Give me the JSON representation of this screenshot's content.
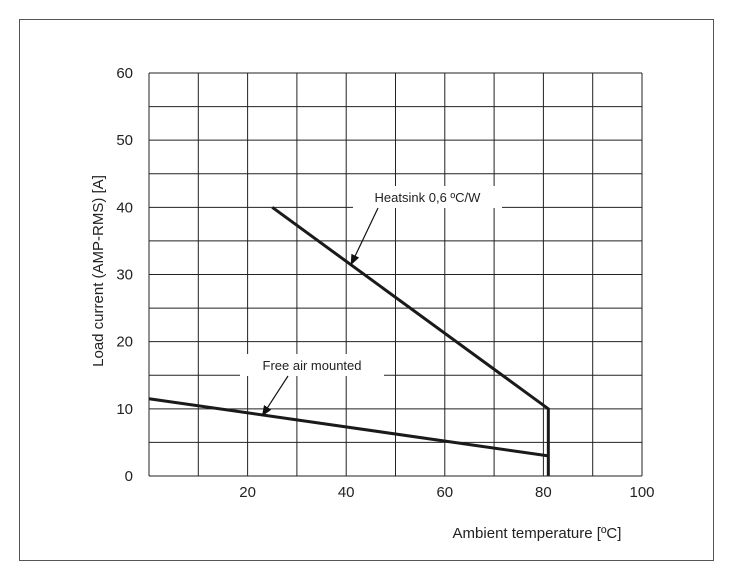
{
  "chart_data": {
    "type": "line",
    "xlabel": "Ambient temperature [ºC]",
    "ylabel": "Load current (AMP-RMS) [A]",
    "xlim": [
      0,
      100
    ],
    "ylim": [
      0,
      60
    ],
    "x_ticks": [
      20,
      40,
      60,
      80,
      100
    ],
    "y_ticks": [
      0,
      10,
      20,
      30,
      40,
      50,
      60
    ],
    "grid": true,
    "series": [
      {
        "name": "Heatsink 0,6 ºC/W",
        "points": [
          [
            25,
            40
          ],
          [
            81,
            10
          ],
          [
            81,
            0
          ]
        ]
      },
      {
        "name": "Free air mounted",
        "points": [
          [
            0,
            11.5
          ],
          [
            81,
            3
          ]
        ]
      }
    ],
    "annotations": [
      {
        "text": "Heatsink 0,6 ºC/W",
        "target": [
          41,
          31.5
        ]
      },
      {
        "text": "Free air mounted",
        "target": [
          23,
          9
        ]
      }
    ],
    "colors": {
      "line": "#1a1a1a",
      "grid": "#222222",
      "border": "#555555"
    }
  }
}
